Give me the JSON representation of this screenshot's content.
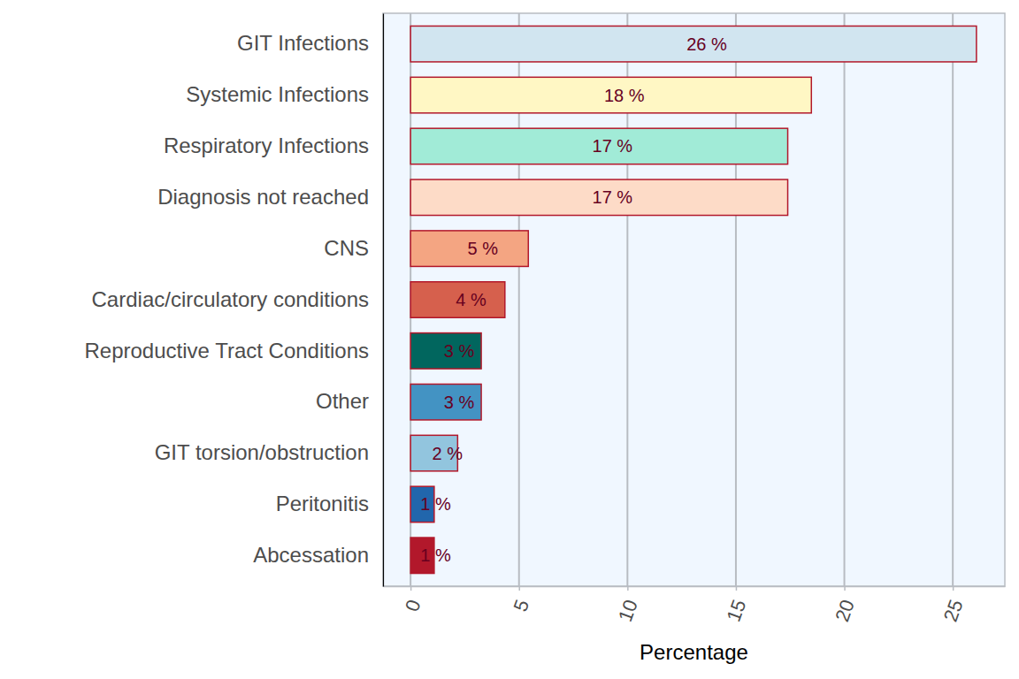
{
  "chart_data": {
    "type": "bar",
    "orientation": "horizontal",
    "categories": [
      "GIT Infections",
      "Systemic Infections",
      "Respiratory Infections",
      "Diagnosis not reached",
      "CNS",
      "Cardiac/circulatory conditions",
      "Reproductive Tract Conditions",
      "Other",
      "GIT torsion/obstruction",
      "Peritonitis",
      "Abcessation"
    ],
    "values": [
      26.09,
      18.48,
      17.39,
      17.39,
      5.43,
      4.35,
      3.26,
      3.26,
      2.17,
      1.09,
      1.09
    ],
    "value_labels": [
      "26 %",
      "18 %",
      "17 %",
      "17 %",
      "5 %",
      "4 %",
      "3 %",
      "3 %",
      "2 %",
      "1 %",
      "1 %"
    ],
    "colors": [
      "#d1e5f0",
      "#fff7c4",
      "#a1ebd7",
      "#fddbc7",
      "#f4a582",
      "#d6604d",
      "#01665e",
      "#4393c3",
      "#92c5de",
      "#2166ac",
      "#b2182b"
    ],
    "xlabel": "Percentage",
    "xlim": [
      -1.27,
      27.4
    ],
    "xticks": [
      0,
      5,
      10,
      15,
      20,
      25
    ],
    "grid": true,
    "data_labels": true
  }
}
